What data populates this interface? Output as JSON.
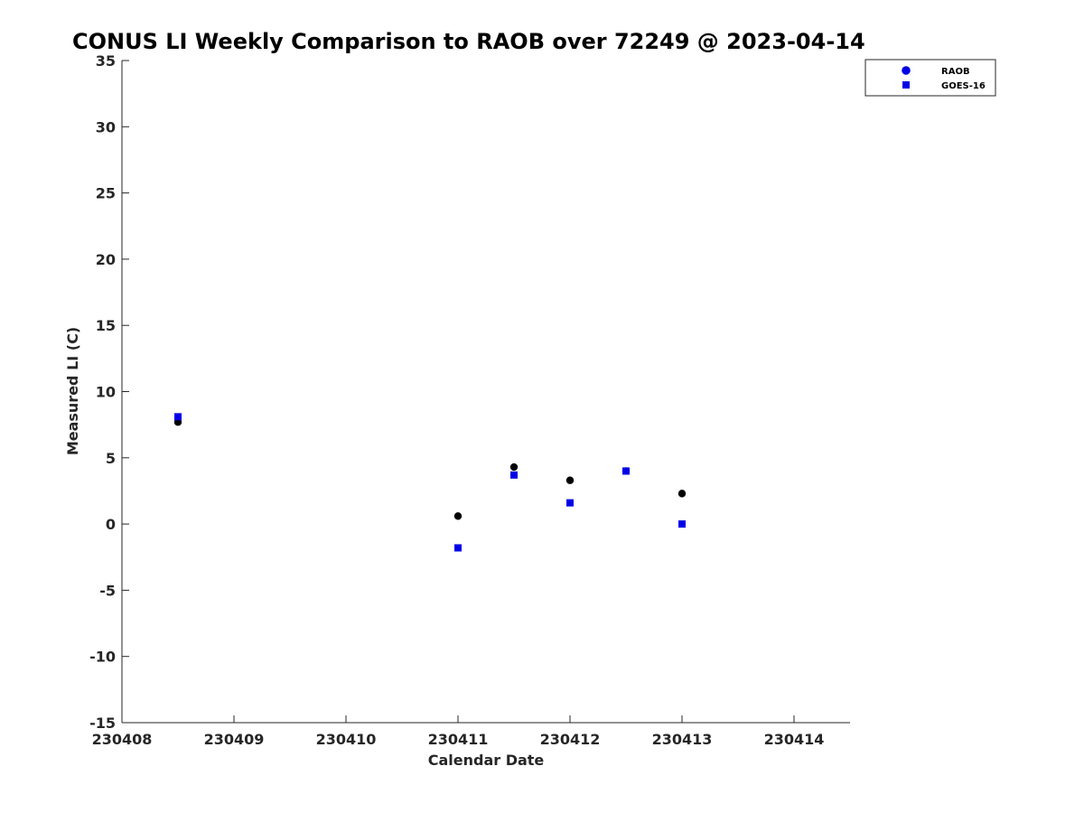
{
  "chart_data": {
    "type": "scatter",
    "title": "CONUS LI Weekly Comparison to RAOB over 72249 @ 2023-04-14",
    "xlabel": "Calendar Date",
    "ylabel": "Measured LI (C)",
    "xlim": [
      230408,
      230414.5
    ],
    "ylim": [
      -15,
      35
    ],
    "xticks": [
      230408,
      230409,
      230410,
      230411,
      230412,
      230413,
      230414
    ],
    "xtick_labels": [
      "230408",
      "230409",
      "230410",
      "230411",
      "230412",
      "230413",
      "230414"
    ],
    "yticks": [
      -15,
      -10,
      -5,
      0,
      5,
      10,
      15,
      20,
      25,
      30,
      35
    ],
    "ytick_labels": [
      "-15",
      "-10",
      "-5",
      "0",
      "5",
      "10",
      "15",
      "20",
      "25",
      "30",
      "35"
    ],
    "grid": false,
    "legend_position": "top-right",
    "series": [
      {
        "name": "RAOB",
        "marker": "circle",
        "color": "#000000",
        "legend_color": "#0000e6",
        "x": [
          230408.5,
          230411.0,
          230411.5,
          230412.0,
          230412.5,
          230413.0
        ],
        "y": [
          7.7,
          0.6,
          4.3,
          3.3,
          4.0,
          2.3
        ]
      },
      {
        "name": "GOES-16",
        "marker": "square",
        "color": "#0000e6",
        "legend_color": "#0000e6",
        "x": [
          230408.5,
          230411.0,
          230411.5,
          230412.0,
          230412.5,
          230413.0
        ],
        "y": [
          8.1,
          -1.8,
          3.7,
          1.6,
          4.0,
          0.0
        ]
      }
    ]
  }
}
